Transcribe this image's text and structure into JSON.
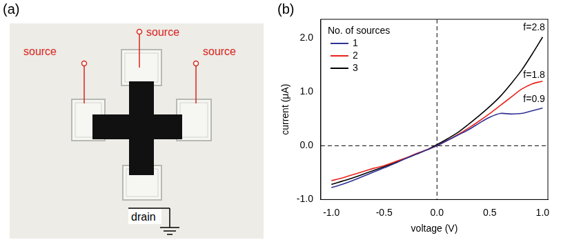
{
  "diagram": {
    "panel": "(a)",
    "terminals": [
      {
        "label": "source",
        "color": "#d9261c"
      },
      {
        "label": "source",
        "color": "#d9261c"
      },
      {
        "label": "source",
        "color": "#d9261c"
      },
      {
        "label": "drain",
        "color": "#000000"
      }
    ]
  },
  "chart_data": {
    "type": "line",
    "panel": "(b)",
    "x_label": "voltage (V)",
    "y_label": "current (μA)",
    "legend": "top-left",
    "legend_title": "No. of sources",
    "grid": false,
    "x": [
      -1.0,
      -0.9,
      -0.8,
      -0.7,
      -0.6,
      -0.5,
      -0.4,
      -0.3,
      -0.2,
      -0.1,
      0.0,
      0.1,
      0.2,
      0.3,
      0.4,
      0.5,
      0.6,
      0.7,
      0.8,
      0.9,
      1.0
    ],
    "series": [
      {
        "name": "1",
        "color": "#2e3192",
        "values": [
          -0.78,
          -0.72,
          -0.65,
          -0.57,
          -0.49,
          -0.41,
          -0.33,
          -0.24,
          -0.16,
          -0.08,
          0.0,
          0.1,
          0.2,
          0.3,
          0.42,
          0.53,
          0.6,
          0.59,
          0.6,
          0.65,
          0.7
        ]
      },
      {
        "name": "2",
        "color": "#e8231b",
        "values": [
          -0.65,
          -0.6,
          -0.54,
          -0.48,
          -0.42,
          -0.37,
          -0.3,
          -0.23,
          -0.15,
          -0.08,
          0.0,
          0.1,
          0.21,
          0.33,
          0.46,
          0.6,
          0.75,
          0.9,
          1.05,
          1.15,
          1.2
        ]
      },
      {
        "name": "3",
        "color": "#000000",
        "values": [
          -0.72,
          -0.66,
          -0.6,
          -0.53,
          -0.46,
          -0.39,
          -0.32,
          -0.24,
          -0.16,
          -0.08,
          0.02,
          0.13,
          0.25,
          0.4,
          0.56,
          0.73,
          0.92,
          1.15,
          1.4,
          1.7,
          2.02
        ]
      }
    ],
    "xlim": [
      -1.1,
      1.05
    ],
    "xticks": [
      {
        "value": -1.0,
        "label": "-1.0"
      },
      {
        "value": -0.5,
        "label": "-0.5"
      },
      {
        "value": 0,
        "label": "0.0"
      },
      {
        "value": 0.5,
        "label": "0.5"
      },
      {
        "value": 1.0,
        "label": "1.0"
      }
    ],
    "ylim": [
      -1.0,
      2.35
    ],
    "yticks": [
      {
        "value": -1.0,
        "label": "-1.0"
      },
      {
        "value": 0,
        "label": "0.0"
      },
      {
        "value": 1.0,
        "label": "1.0"
      },
      {
        "value": 2.0,
        "label": "2.0"
      }
    ],
    "zero_lines": [
      {
        "axis": "x",
        "value": 0
      },
      {
        "axis": "y",
        "value": 0
      }
    ],
    "annotations": [
      {
        "text": "f=2.8",
        "x": 0.92,
        "y": 2.2
      },
      {
        "text": "f=1.8",
        "x": 0.92,
        "y": 1.31
      },
      {
        "text": "f=0.9",
        "x": 0.92,
        "y": 0.86
      }
    ]
  }
}
